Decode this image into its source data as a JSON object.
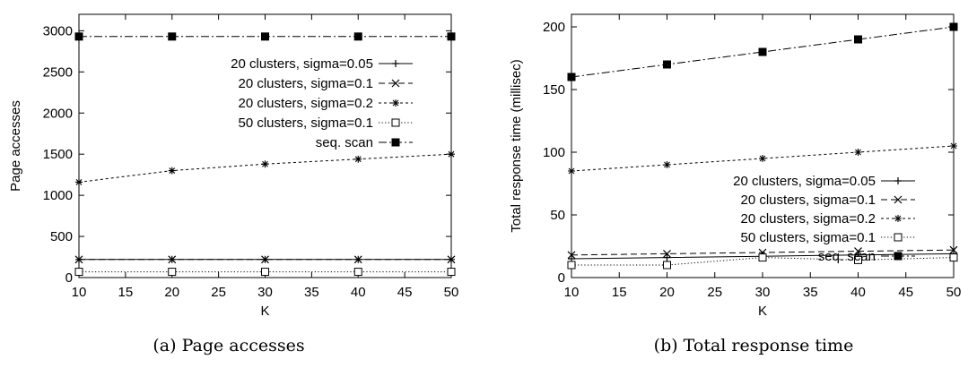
{
  "chart_data": [
    {
      "type": "line",
      "caption": "(a) Page accesses",
      "xlabel": "K",
      "ylabel": "Page accesses",
      "xlim": [
        10,
        50
      ],
      "ylim": [
        0,
        3200
      ],
      "xticks": [
        10,
        15,
        20,
        25,
        30,
        35,
        40,
        45,
        50
      ],
      "yticks": [
        0,
        500,
        1000,
        1500,
        2000,
        2500,
        3000
      ],
      "legend_position": "upper-right",
      "x": [
        10,
        20,
        30,
        40,
        50
      ],
      "series": [
        {
          "name": "20 clusters, sigma=0.05",
          "marker": "plus",
          "dash": "solid",
          "values": [
            220,
            220,
            220,
            220,
            220
          ]
        },
        {
          "name": "20 clusters, sigma=0.1",
          "marker": "x",
          "dash": "dashed",
          "values": [
            220,
            220,
            220,
            220,
            220
          ]
        },
        {
          "name": "20 clusters, sigma=0.2",
          "marker": "star",
          "dash": "short-dashed",
          "values": [
            1160,
            1300,
            1380,
            1440,
            1500
          ]
        },
        {
          "name": "50 clusters, sigma=0.1",
          "marker": "open-square",
          "dash": "dotted",
          "values": [
            70,
            70,
            70,
            70,
            70
          ]
        },
        {
          "name": "seq. scan",
          "marker": "filled-square",
          "dash": "dash-dot",
          "values": [
            2930,
            2930,
            2930,
            2930,
            2930
          ]
        }
      ]
    },
    {
      "type": "line",
      "caption": "(b) Total response time",
      "xlabel": "K",
      "ylabel": "Total response time (millisec)",
      "xlim": [
        10,
        50
      ],
      "ylim": [
        0,
        210
      ],
      "xticks": [
        10,
        15,
        20,
        25,
        30,
        35,
        40,
        45,
        50
      ],
      "yticks": [
        0,
        50,
        100,
        150,
        200
      ],
      "legend_position": "lower-right",
      "x": [
        10,
        20,
        30,
        40,
        50
      ],
      "series": [
        {
          "name": "20 clusters, sigma=0.05",
          "marker": "plus",
          "dash": "solid",
          "values": [
            15,
            16,
            17,
            18,
            19
          ]
        },
        {
          "name": "20 clusters, sigma=0.1",
          "marker": "x",
          "dash": "dashed",
          "values": [
            18,
            19,
            20,
            21,
            22
          ]
        },
        {
          "name": "20 clusters, sigma=0.2",
          "marker": "star",
          "dash": "short-dashed",
          "values": [
            85,
            90,
            95,
            100,
            105
          ]
        },
        {
          "name": "50 clusters, sigma=0.1",
          "marker": "open-square",
          "dash": "dotted",
          "values": [
            10,
            10,
            16,
            14,
            16
          ]
        },
        {
          "name": "seq. scan",
          "marker": "filled-square",
          "dash": "dash-dot",
          "values": [
            160,
            170,
            180,
            190,
            200
          ]
        }
      ]
    }
  ]
}
